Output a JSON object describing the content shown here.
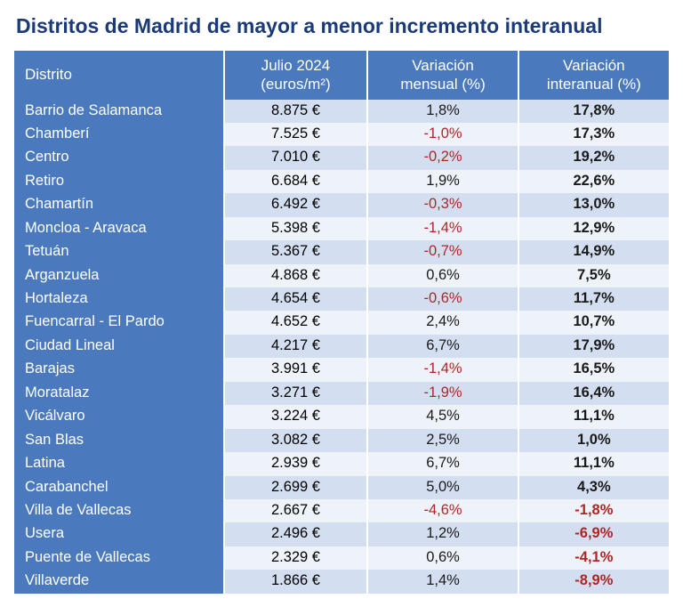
{
  "title": "Distritos de Madrid de mayor a menor incremento interanual",
  "colors": {
    "title": "#1b3a7a",
    "header_bg": "#4a79bd",
    "header_text": "#ffffff",
    "row_odd_bg": "#d3dff0",
    "row_even_bg": "#eef3fa",
    "distrito_cell_bg": "#4a79bd",
    "distrito_cell_text": "#ffffff",
    "negative_text": "#b02626",
    "positive_text": "#1a1a1a",
    "year_weight": "bold"
  },
  "table": {
    "type": "table",
    "columns": [
      {
        "key": "distrito",
        "label": "Distrito",
        "align": "left"
      },
      {
        "key": "price",
        "label": "Julio 2024\n(euros/m²)",
        "align": "center"
      },
      {
        "key": "month",
        "label": "Variación\nmensual (%)",
        "align": "center"
      },
      {
        "key": "year",
        "label": "Variación\ninteranual (%)",
        "align": "center",
        "bold": true
      }
    ],
    "rows": [
      {
        "distrito": "Barrio de Salamanca",
        "price": "8.875 €",
        "month": "1,8%",
        "month_neg": false,
        "year": "17,8%",
        "year_neg": false
      },
      {
        "distrito": "Chamberí",
        "price": "7.525 €",
        "month": "-1,0%",
        "month_neg": true,
        "year": "17,3%",
        "year_neg": false
      },
      {
        "distrito": "Centro",
        "price": "7.010 €",
        "month": "-0,2%",
        "month_neg": true,
        "year": "19,2%",
        "year_neg": false
      },
      {
        "distrito": "Retiro",
        "price": "6.684 €",
        "month": "1,9%",
        "month_neg": false,
        "year": "22,6%",
        "year_neg": false
      },
      {
        "distrito": "Chamartín",
        "price": "6.492 €",
        "month": "-0,3%",
        "month_neg": true,
        "year": "13,0%",
        "year_neg": false
      },
      {
        "distrito": "Moncloa - Aravaca",
        "price": "5.398 €",
        "month": "-1,4%",
        "month_neg": true,
        "year": "12,9%",
        "year_neg": false
      },
      {
        "distrito": "Tetuán",
        "price": "5.367 €",
        "month": "-0,7%",
        "month_neg": true,
        "year": "14,9%",
        "year_neg": false
      },
      {
        "distrito": "Arganzuela",
        "price": "4.868 €",
        "month": "0,6%",
        "month_neg": false,
        "year": "7,5%",
        "year_neg": false
      },
      {
        "distrito": "Hortaleza",
        "price": "4.654 €",
        "month": "-0,6%",
        "month_neg": true,
        "year": "11,7%",
        "year_neg": false
      },
      {
        "distrito": "Fuencarral - El Pardo",
        "price": "4.652 €",
        "month": "2,4%",
        "month_neg": false,
        "year": "10,7%",
        "year_neg": false
      },
      {
        "distrito": "Ciudad Lineal",
        "price": "4.217 €",
        "month": "6,7%",
        "month_neg": false,
        "year": "17,9%",
        "year_neg": false
      },
      {
        "distrito": "Barajas",
        "price": "3.991 €",
        "month": "-1,4%",
        "month_neg": true,
        "year": "16,5%",
        "year_neg": false
      },
      {
        "distrito": "Moratalaz",
        "price": "3.271 €",
        "month": "-1,9%",
        "month_neg": true,
        "year": "16,4%",
        "year_neg": false
      },
      {
        "distrito": "Vicálvaro",
        "price": "3.224 €",
        "month": "4,5%",
        "month_neg": false,
        "year": "11,1%",
        "year_neg": false
      },
      {
        "distrito": "San Blas",
        "price": "3.082 €",
        "month": "2,5%",
        "month_neg": false,
        "year": "1,0%",
        "year_neg": false
      },
      {
        "distrito": "Latina",
        "price": "2.939 €",
        "month": "6,7%",
        "month_neg": false,
        "year": "11,1%",
        "year_neg": false
      },
      {
        "distrito": "Carabanchel",
        "price": "2.699 €",
        "month": "5,0%",
        "month_neg": false,
        "year": "4,3%",
        "year_neg": false
      },
      {
        "distrito": "Villa de Vallecas",
        "price": "2.667 €",
        "month": "-4,6%",
        "month_neg": true,
        "year": "-1,8%",
        "year_neg": true
      },
      {
        "distrito": "Usera",
        "price": "2.496 €",
        "month": "1,2%",
        "month_neg": false,
        "year": "-6,9%",
        "year_neg": true
      },
      {
        "distrito": "Puente de Vallecas",
        "price": "2.329 €",
        "month": "0,6%",
        "month_neg": false,
        "year": "-4,1%",
        "year_neg": true
      },
      {
        "distrito": "Villaverde",
        "price": "1.866 €",
        "month": "1,4%",
        "month_neg": false,
        "year": "-8,9%",
        "year_neg": true
      }
    ]
  }
}
